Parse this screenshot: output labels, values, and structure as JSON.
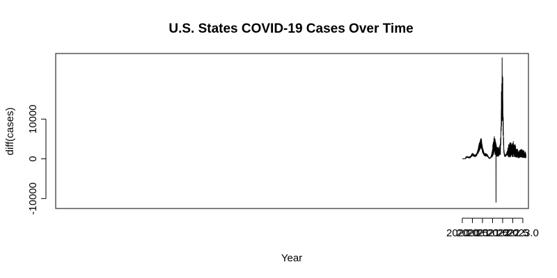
{
  "chart_data": {
    "type": "line",
    "title": "U.S. States COVID-19 Cases Over Time",
    "xlabel": "Year",
    "ylabel": "diff(cases)",
    "xlim": [
      1999.84,
      2023.28
    ],
    "ylim": [
      -12500,
      26500
    ],
    "x_ticks": [
      2020.0,
      2020.5,
      2021.0,
      2021.5,
      2022.0,
      2022.5,
      2023.0
    ],
    "x_tick_labels": [
      "2020.0",
      "2020.5",
      "2021.0",
      "2021.5",
      "2022.0",
      "2022.5",
      "2023.0"
    ],
    "y_ticks": [
      -10000,
      0,
      10000
    ],
    "y_tick_labels": [
      "-10000",
      "0",
      "10000"
    ],
    "grid": false,
    "legend": "none",
    "series": [
      {
        "color": "#000000",
        "trend": {
          "x": [
            2020.0,
            2020.08,
            2020.15,
            2020.22,
            2020.3,
            2020.4,
            2020.5,
            2020.6,
            2020.7,
            2020.78,
            2020.85,
            2020.9,
            2020.95,
            2021.0,
            2021.08,
            2021.15,
            2021.25,
            2021.33,
            2021.4,
            2021.47,
            2021.55,
            2021.6,
            2021.65,
            2021.7,
            2021.75,
            2021.8,
            2021.85,
            2021.9,
            2021.95,
            2021.98,
            2022.0,
            2022.03,
            2022.06,
            2022.1,
            2022.15,
            2022.22,
            2022.3,
            2022.4,
            2022.5,
            2022.6,
            2022.7,
            2022.8,
            2022.9,
            2023.0,
            2023.1,
            2023.16
          ],
          "y": [
            0,
            0,
            80,
            500,
            400,
            500,
            1200,
            800,
            1000,
            2000,
            3200,
            3800,
            4200,
            2500,
            1200,
            1100,
            900,
            200,
            300,
            1200,
            3300,
            3600,
            3000,
            2000,
            1800,
            1900,
            2000,
            3500,
            14000,
            16000,
            14500,
            8000,
            2000,
            900,
            800,
            1500,
            2200,
            2500,
            2800,
            2300,
            1600,
            1200,
            1500,
            1400,
            1100,
            1000
          ]
        },
        "spikes": [
          {
            "x": 2021.67,
            "y": -11000
          },
          {
            "x": 2021.975,
            "y": 25500
          },
          {
            "x": 2021.99,
            "y": 21000
          },
          {
            "x": 2021.96,
            "y": 19000
          },
          {
            "x": 2022.005,
            "y": 20500
          },
          {
            "x": 2021.94,
            "y": 17000
          }
        ]
      }
    ]
  }
}
